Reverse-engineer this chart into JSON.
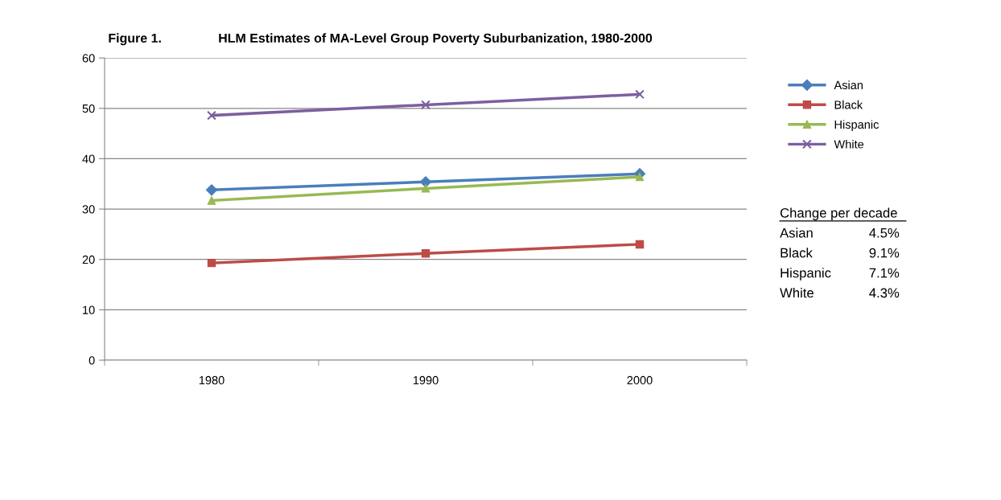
{
  "chart_data": {
    "type": "line",
    "title": "HLM Estimates of MA-Level Group Poverty Suburbanization, 1980-2000",
    "categories": [
      "1980",
      "1990",
      "2000"
    ],
    "series": [
      {
        "name": "Asian",
        "color": "#4a7ebb",
        "marker": "diamond",
        "values": [
          33.8,
          35.4,
          37.0
        ]
      },
      {
        "name": "Black",
        "color": "#be4b48",
        "marker": "square",
        "values": [
          19.3,
          21.2,
          23.0
        ]
      },
      {
        "name": "Hispanic",
        "color": "#98b954",
        "marker": "triangle",
        "values": [
          31.7,
          34.1,
          36.4
        ]
      },
      {
        "name": "White",
        "color": "#7d5fa0",
        "marker": "cross",
        "values": [
          48.6,
          50.7,
          52.8
        ]
      }
    ],
    "ylim": [
      0,
      60
    ],
    "yticks": [
      0,
      10,
      20,
      30,
      40,
      50,
      60
    ],
    "grid": "y",
    "legend": "right",
    "line_style": "solid",
    "annotations": [
      "Figure 1.",
      "Change per decade",
      "Asian",
      "4.5%",
      "Black",
      "9.1%",
      "Hispanic",
      "7.1%",
      "White",
      "4.3%"
    ]
  }
}
